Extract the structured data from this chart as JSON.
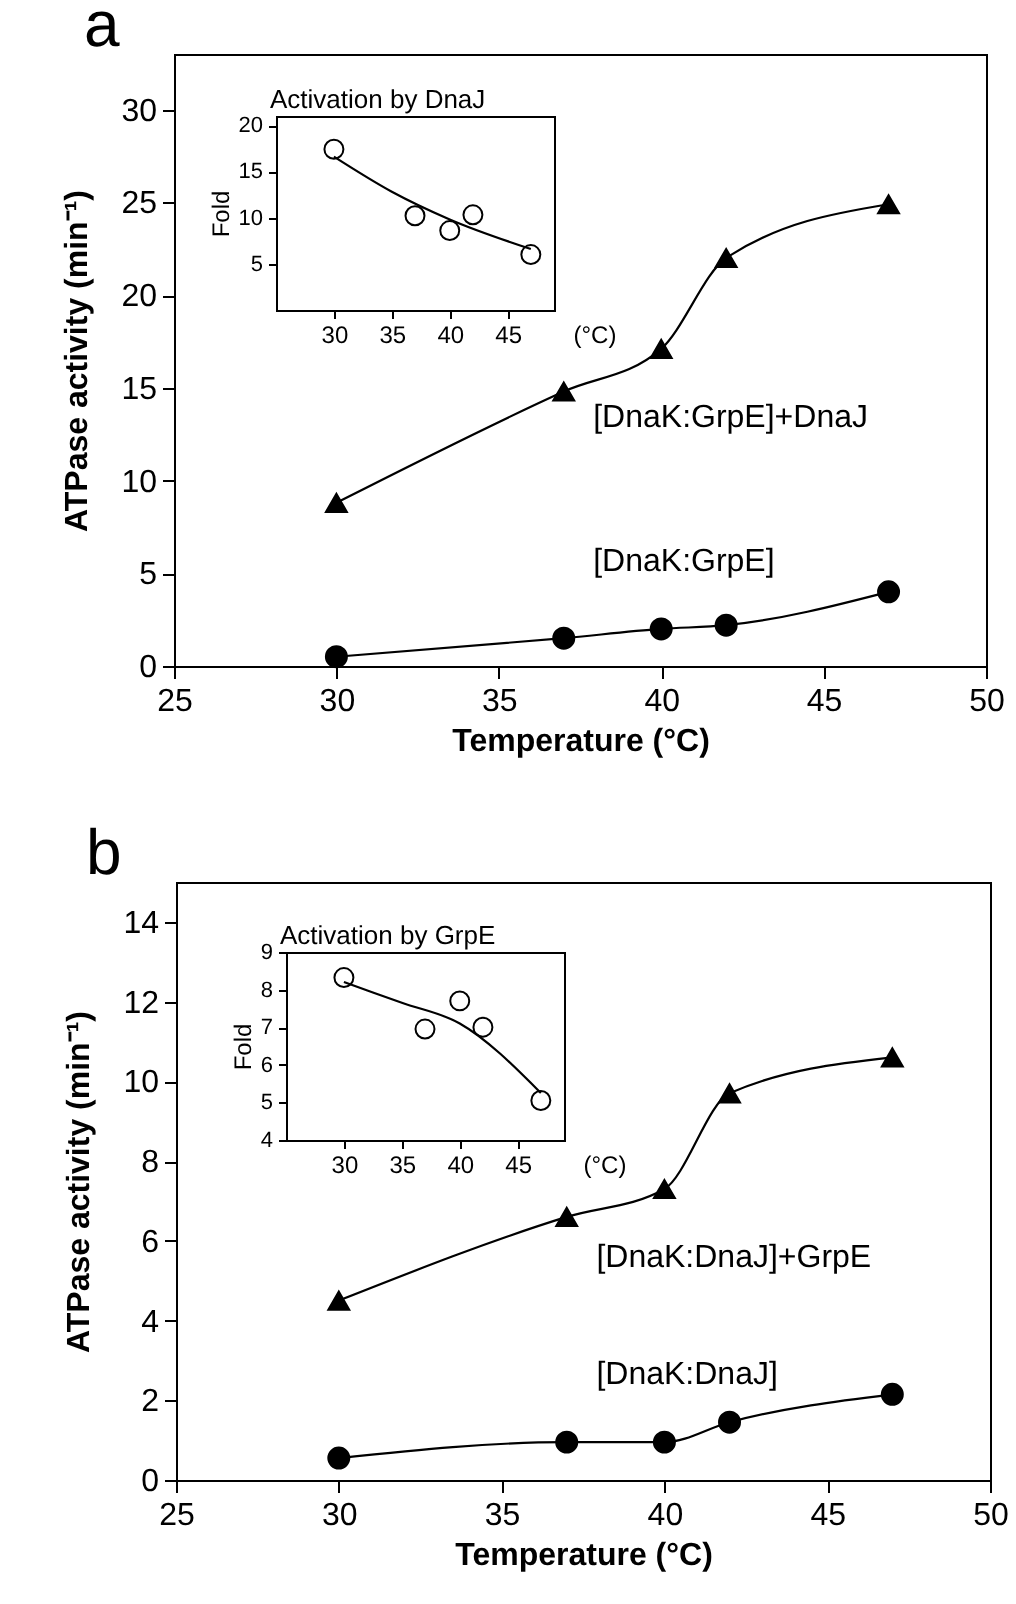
{
  "chart_data": [
    {
      "type": "line",
      "title": "a",
      "xlabel": "Temperature (°C)",
      "ylabel": "ATPase activity (min⁻¹)",
      "x": [
        30,
        37,
        40,
        42,
        47
      ],
      "xlim": [
        25,
        50
      ],
      "xticks": [
        25,
        30,
        35,
        40,
        45,
        50
      ],
      "ylim": [
        0,
        33
      ],
      "yticks": [
        0,
        5,
        10,
        15,
        20,
        25,
        30
      ],
      "grid": false,
      "series": [
        {
          "name": "[DnaK:GrpE]+DnaJ",
          "color": "#000000",
          "marker": "triangle",
          "values": [
            8.8,
            14.8,
            17.1,
            22,
            24.9
          ]
        },
        {
          "name": "[DnaK:GrpE]",
          "color": "#000000",
          "marker": "circle",
          "values": [
            0.5,
            1.5,
            2.0,
            2.2,
            4.0
          ]
        }
      ]
    },
    {
      "type": "scatter",
      "title": "Activation by DnaJ",
      "xlabel": "(°C)",
      "ylabel": "Fold",
      "x": [
        30,
        37,
        40,
        42,
        47
      ],
      "xlim": [
        25,
        49
      ],
      "xticks": [
        30,
        35,
        40,
        45
      ],
      "ylim": [
        0,
        21
      ],
      "yticks": [
        5,
        10,
        15,
        20
      ],
      "grid": false,
      "series": [
        {
          "color": "#000000",
          "marker": "circle",
          "values": [
            17.4,
            10.2,
            8.6,
            10.3,
            6.0
          ]
        },
        {
          "type": "line",
          "color": "#000000",
          "marker": "none",
          "x": [
            30,
            35,
            40,
            47
          ],
          "values": [
            16.6,
            12.8,
            9.8,
            6.6
          ]
        }
      ]
    },
    {
      "type": "line",
      "title": "b",
      "xlabel": "Temperature (°C)",
      "ylabel": "ATPase activity (min⁻¹)",
      "x": [
        30,
        37,
        40,
        42,
        47
      ],
      "xlim": [
        25,
        50
      ],
      "xticks": [
        25,
        30,
        35,
        40,
        45,
        50
      ],
      "ylim": [
        0,
        15
      ],
      "yticks": [
        0,
        2,
        4,
        6,
        8,
        10,
        12,
        14
      ],
      "grid": false,
      "series": [
        {
          "name": "[DnaK:DnaJ]+GrpE",
          "color": "#000000",
          "marker": "triangle",
          "values": [
            4.5,
            6.6,
            7.3,
            9.7,
            10.6
          ]
        },
        {
          "name": "[DnaK:DnaJ]",
          "color": "#000000",
          "marker": "circle",
          "values": [
            0.55,
            0.95,
            0.95,
            1.45,
            2.15
          ]
        }
      ]
    },
    {
      "type": "scatter",
      "title": "Activation by GrpE",
      "xlabel": "(°C)",
      "ylabel": "Fold",
      "x": [
        30,
        37,
        40,
        42,
        47
      ],
      "xlim": [
        25,
        49
      ],
      "xticks": [
        30,
        35,
        40,
        45
      ],
      "ylim": [
        4,
        9
      ],
      "yticks": [
        4,
        5,
        6,
        7,
        8,
        9
      ],
      "grid": false,
      "series": [
        {
          "color": "#000000",
          "marker": "circle",
          "values": [
            8.32,
            6.95,
            7.7,
            7.0,
            5.05
          ]
        },
        {
          "type": "line",
          "color": "#000000",
          "marker": "none",
          "x": [
            30,
            35,
            40,
            47
          ],
          "values": [
            8.2,
            7.65,
            7.1,
            5.25
          ]
        }
      ]
    }
  ]
}
